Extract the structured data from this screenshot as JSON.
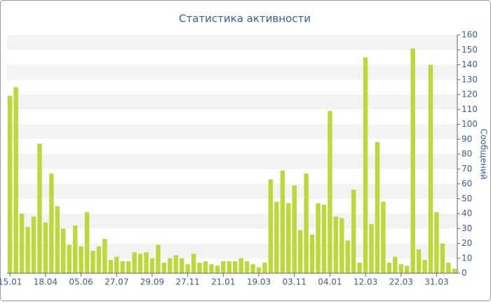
{
  "chart_data": {
    "type": "bar",
    "title": "Статистика активности",
    "y_label": "Сообщений",
    "categories": [
      "15.01",
      null,
      null,
      null,
      null,
      null,
      "18.04",
      null,
      null,
      null,
      null,
      null,
      "05.06",
      null,
      null,
      null,
      null,
      null,
      "27.07",
      null,
      null,
      null,
      null,
      null,
      "29.09",
      null,
      null,
      null,
      null,
      null,
      "27.11",
      null,
      null,
      null,
      null,
      null,
      "21.01",
      null,
      null,
      null,
      null,
      null,
      "19.03",
      null,
      null,
      null,
      null,
      null,
      "03.11",
      null,
      null,
      null,
      null,
      null,
      "04.01",
      null,
      null,
      null,
      null,
      null,
      "12.03",
      null,
      null,
      null,
      null,
      null,
      "22.03",
      null,
      null,
      null,
      null,
      null,
      "31.03",
      null,
      null,
      null
    ],
    "values": [
      119,
      125,
      40,
      31,
      38,
      87,
      34,
      67,
      45,
      30,
      19,
      32,
      18,
      41,
      15,
      18,
      23,
      9,
      11,
      8,
      8,
      14,
      13,
      14,
      10,
      19,
      7,
      10,
      12,
      10,
      6,
      13,
      7,
      8,
      6,
      5,
      8,
      8,
      8,
      10,
      8,
      6,
      4,
      7,
      63,
      48,
      69,
      47,
      59,
      29,
      67,
      26,
      47,
      46,
      109,
      38,
      37,
      22,
      56,
      7,
      145,
      33,
      88,
      48,
      7,
      11,
      6,
      5,
      151,
      16,
      9,
      140,
      41,
      20,
      7,
      3
    ],
    "color": "#bcd83a",
    "ylim": [
      0,
      160
    ],
    "yticks": [
      0,
      10,
      20,
      30,
      40,
      50,
      60,
      70,
      80,
      90,
      100,
      110,
      120,
      130,
      140,
      150,
      160
    ],
    "grid": true,
    "y_axis_side": "right"
  }
}
